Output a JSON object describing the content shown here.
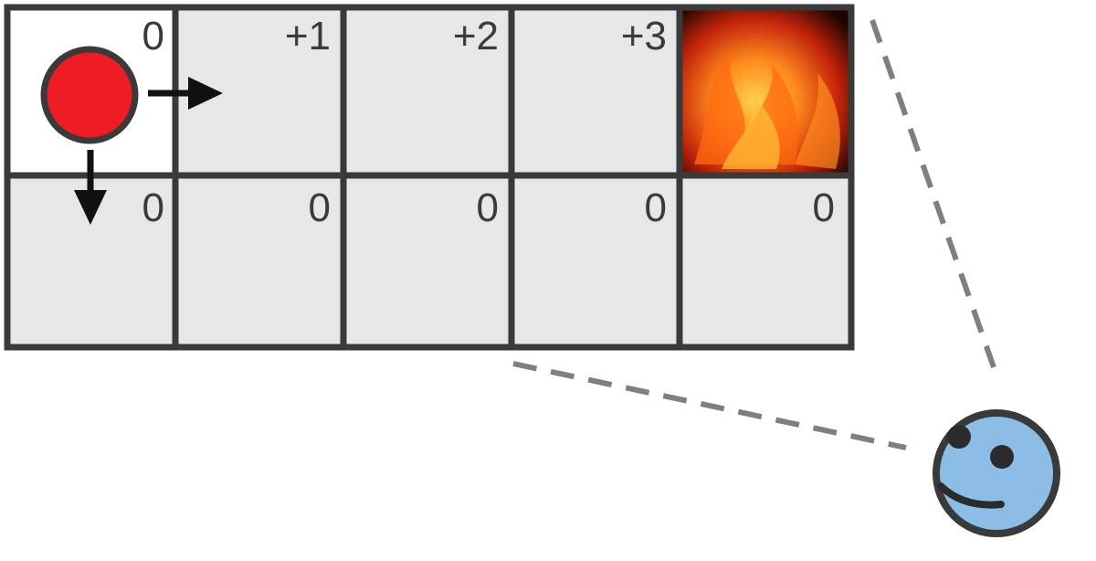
{
  "grid": {
    "rows": 2,
    "cols": 5,
    "top_row_labels": [
      "0",
      "+1",
      "+2",
      "+3",
      ""
    ],
    "bottom_row_labels": [
      "0",
      "0",
      "0",
      "0",
      "0"
    ],
    "fire_cell": {
      "row": 0,
      "col": 4
    },
    "start_cell": {
      "row": 0,
      "col": 0
    }
  },
  "agent": {
    "color": "#ee1c24",
    "arrows": [
      "right",
      "down"
    ]
  },
  "observer": {
    "color": "#8bbde7",
    "expression": "smiling"
  },
  "colors": {
    "cell_fill": "#e6e7e8",
    "start_cell_fill": "#ffffff",
    "grid_line": "#3a3a3a",
    "dash_line": "#7f7f7f"
  }
}
